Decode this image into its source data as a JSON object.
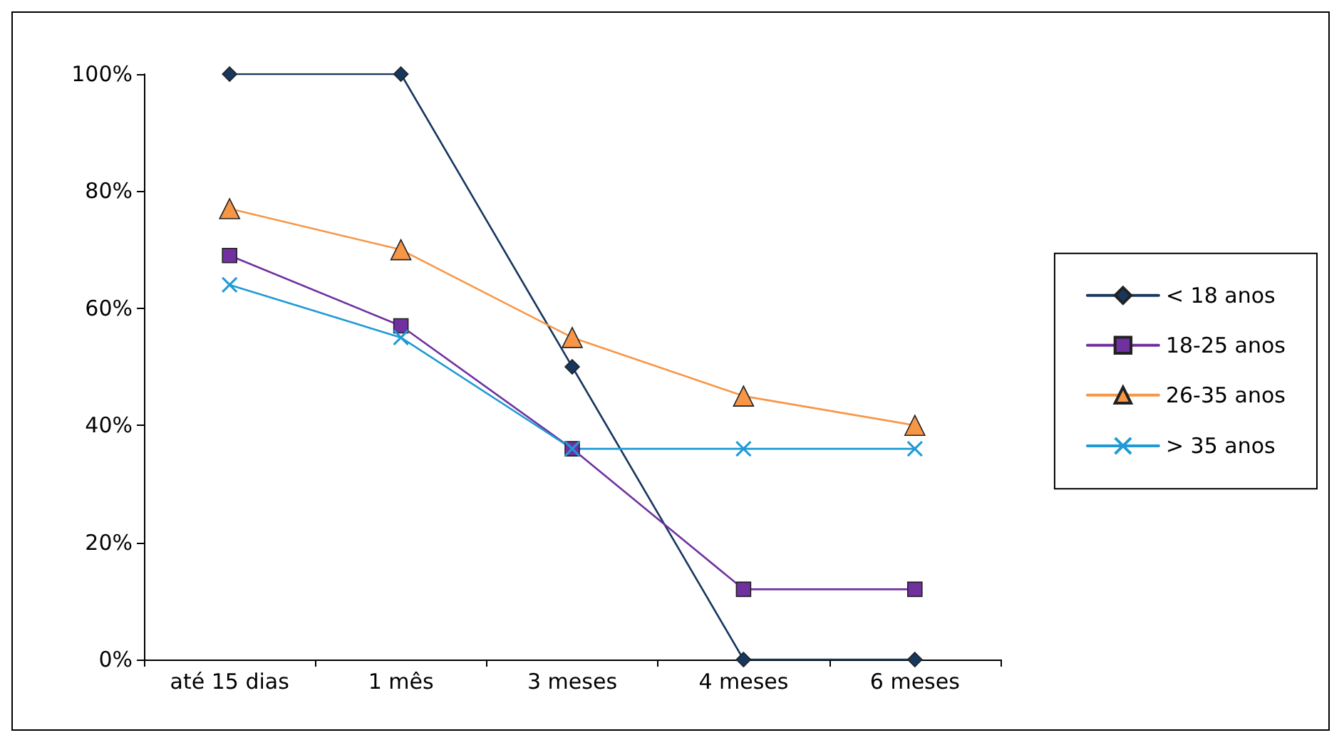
{
  "chart_data": {
    "type": "line",
    "categories": [
      "até 15 dias",
      "1 mês",
      "3 meses",
      "4 meses",
      "6 meses"
    ],
    "series": [
      {
        "name": "< 18 anos",
        "color": "#17375e",
        "marker": "diamond",
        "values": [
          100,
          100,
          50,
          0,
          0
        ]
      },
      {
        "name": "18-25 anos",
        "color": "#7030a0",
        "marker": "square",
        "values": [
          69,
          57,
          36,
          12,
          12
        ]
      },
      {
        "name": "26-35 anos",
        "color": "#f79646",
        "marker": "triangle",
        "values": [
          77,
          70,
          55,
          45,
          40
        ]
      },
      {
        "name": "> 35 anos",
        "color": "#1f9ad6",
        "marker": "cross",
        "values": [
          64,
          55,
          36,
          36,
          36
        ]
      }
    ],
    "ylim": [
      0,
      100
    ],
    "yticks": [
      {
        "value": 0,
        "label": "0%"
      },
      {
        "value": 20,
        "label": "20%"
      },
      {
        "value": 40,
        "label": "40%"
      },
      {
        "value": 60,
        "label": "60%"
      },
      {
        "value": 80,
        "label": "80%"
      },
      {
        "value": 100,
        "label": "100%"
      }
    ],
    "grid": false,
    "legend": "right",
    "line_style": "solid"
  }
}
